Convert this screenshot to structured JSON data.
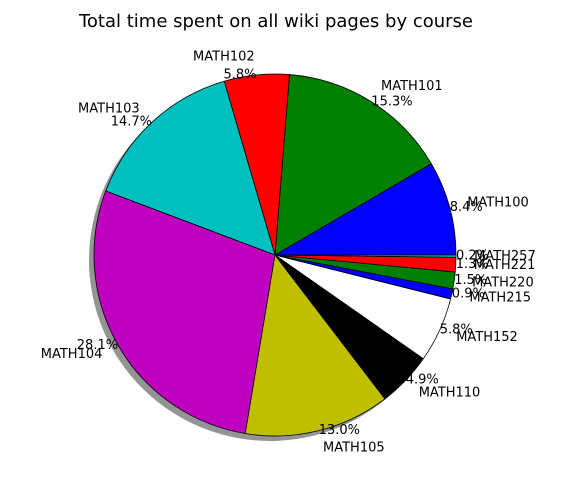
{
  "chart_data": {
    "type": "pie",
    "title": "Total time spent on all wiki pages by course",
    "shadow": true,
    "direction": "counterclockwise",
    "start_angle_deg": 0,
    "slices": [
      {
        "label": "MATH100",
        "percent": 8.4,
        "pct_text": "8.4%",
        "color": "#0000ff"
      },
      {
        "label": "MATH101",
        "percent": 15.3,
        "pct_text": "15.3%",
        "color": "#008000"
      },
      {
        "label": "MATH102",
        "percent": 5.8,
        "pct_text": "5.8%",
        "color": "#ff0000"
      },
      {
        "label": "MATH103",
        "percent": 14.7,
        "pct_text": "14.7%",
        "color": "#00bfbf"
      },
      {
        "label": "MATH104",
        "percent": 28.1,
        "pct_text": "28.1%",
        "color": "#bf00bf"
      },
      {
        "label": "MATH105",
        "percent": 13.0,
        "pct_text": "13.0%",
        "color": "#bfbf00"
      },
      {
        "label": "MATH110",
        "percent": 4.9,
        "pct_text": "4.9%",
        "color": "#000000"
      },
      {
        "label": "MATH152",
        "percent": 5.8,
        "pct_text": "5.8%",
        "color": "#ffffff"
      },
      {
        "label": "MATH215",
        "percent": 0.9,
        "pct_text": "0.9%",
        "color": "#0000ff"
      },
      {
        "label": "MATH220",
        "percent": 1.5,
        "pct_text": "1.5%",
        "color": "#008000"
      },
      {
        "label": "MATH221",
        "percent": 1.3,
        "pct_text": "1.3%",
        "color": "#ff0000"
      },
      {
        "label": "MATH257",
        "percent": 0.2,
        "pct_text": "0.2%",
        "color": "#00bfbf"
      }
    ]
  }
}
